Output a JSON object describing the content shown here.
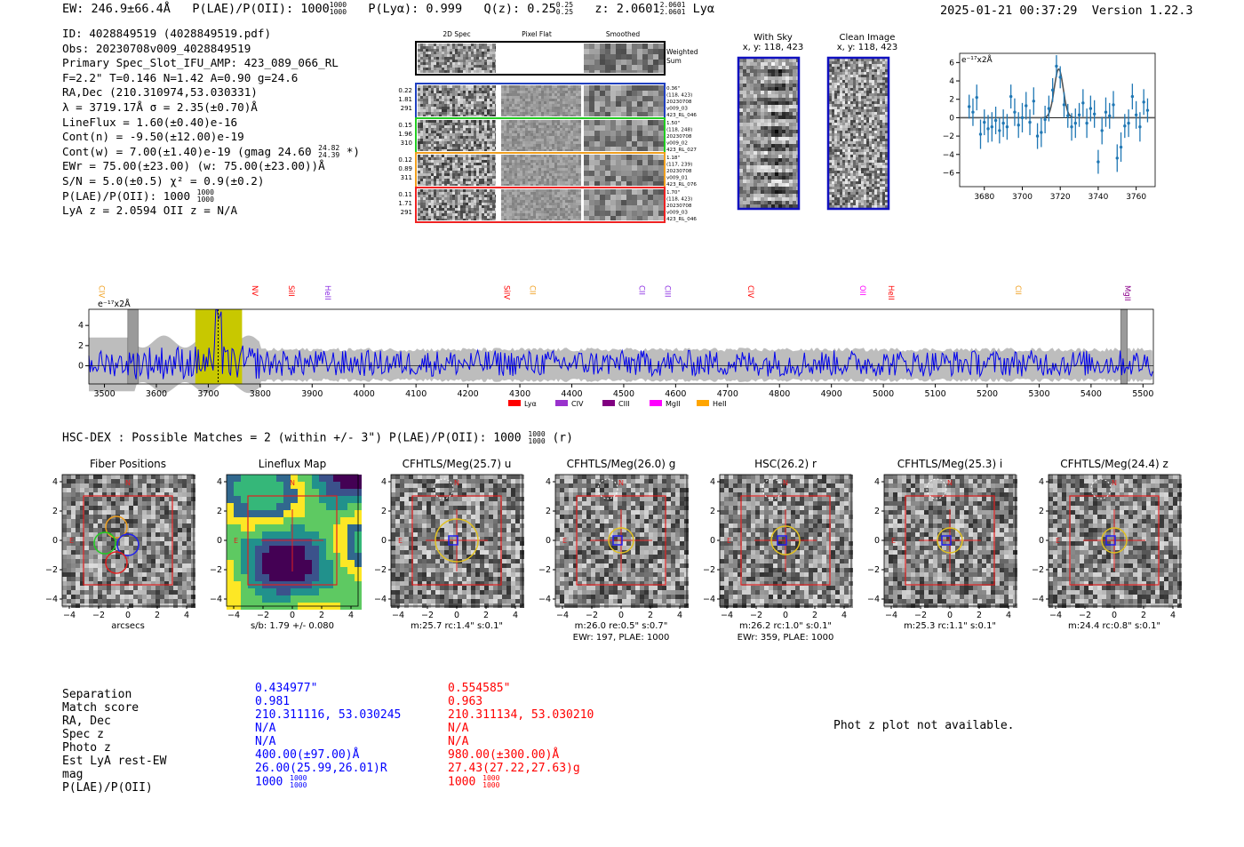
{
  "header": {
    "ew": "EW: 246.9±66.4Å",
    "plae_label": "P(LAE)/P(OII): 1000",
    "plae_hi": "1000",
    "plae_lo": "1000",
    "plya": "P(Lyα): 0.999",
    "qz_label": "Q(z): 0.25",
    "qz_hi": "0.25",
    "qz_lo": "0.25",
    "z_label": "z: 2.0601",
    "z_hi": "2.0601",
    "z_lo": "2.0601",
    "z_line": "Lyα",
    "datetime": "2025-01-21 00:37:29",
    "version": "Version 1.22.3"
  },
  "info": {
    "id": "ID: 4028849519 (4028849519.pdf)",
    "obs": "Obs: 20230708v009_4028849519",
    "primary": "Primary Spec_Slot_IFU_AMP: 423_089_066_RL",
    "f": "F=2.2\"  T=0.146  N=1.42  A=0.90  g=24.6",
    "radec": "RA,Dec (210.310974,53.030331)",
    "lambda": "λ = 3719.17Å   σ = 2.35(±0.70)Å",
    "lineflux": "LineFlux = 1.60(±0.40)e-16",
    "contn": "Cont(n) = -9.50(±12.00)e-19",
    "contw": "Cont(w) = 7.00(±1.40)e-19 (gmag 24.60",
    "contw_hi": "24.82",
    "contw_lo": "24.39",
    "contw_end": "*)",
    "ewr": "EWr = 75.00(±23.00) (w: 75.00(±23.00))Å",
    "sn": "S/N = 5.0(±0.5)  χ² = 0.9(±0.2)",
    "plae": "P(LAE)/P(OII): 1000",
    "plae_hi": "1000",
    "plae_lo": "1000",
    "lyaz": "LyA z = 2.0594  OII z = N/A"
  },
  "cutouts": {
    "col_headers": [
      "2D Spec",
      "Pixel Flat",
      "Smoothed"
    ],
    "weighted_sum": "Weighted\nSum",
    "rows": [
      {
        "left": [
          "0.22",
          "1.81",
          "291"
        ],
        "right": [
          "0.36\"",
          "(118, 423)",
          "20230708",
          "v009_03",
          "423_RL_046"
        ],
        "color": "#1f3fbf"
      },
      {
        "left": [
          "0.15",
          "1.96",
          "310"
        ],
        "right": [
          "1.50\"",
          "(118, 248)",
          "20230708",
          "v009_02",
          "423_RL_027"
        ],
        "color": "#22cc22"
      },
      {
        "left": [
          "0.12",
          "0.89",
          "311"
        ],
        "right": [
          "1.18\"",
          "(117, 239)",
          "20230708",
          "v009_01",
          "423_RL_076"
        ],
        "color": "#f0a020"
      },
      {
        "left": [
          "0.11",
          "1.71",
          "291"
        ],
        "right": [
          "1.70\"",
          "(118, 423)",
          "20230708",
          "v009_03",
          "423_RL_046"
        ],
        "color": "#ee2222"
      }
    ]
  },
  "sky": {
    "with_sky_title": "With Sky",
    "with_sky_xy": "x, y: 118, 423",
    "clean_title": "Clean Image",
    "clean_xy": "x, y: 118, 423"
  },
  "chart_data": [
    {
      "type": "scatter",
      "unit_label": "e⁻¹⁷x2Å",
      "xlim": [
        3667,
        3770
      ],
      "ylim": [
        -7.5,
        7
      ],
      "xticks": [
        3680,
        3700,
        3720,
        3740,
        3760
      ],
      "yticks": [
        6,
        4,
        2,
        0,
        -2,
        -4,
        -6
      ],
      "x": [
        3672,
        3674,
        3676,
        3678,
        3680,
        3682,
        3684,
        3686,
        3688,
        3690,
        3692,
        3694,
        3696,
        3698,
        3700,
        3702,
        3704,
        3706,
        3708,
        3710,
        3712,
        3714,
        3716,
        3718,
        3720,
        3722,
        3724,
        3726,
        3728,
        3730,
        3732,
        3734,
        3736,
        3738,
        3740,
        3742,
        3744,
        3746,
        3748,
        3750,
        3752,
        3754,
        3756,
        3758,
        3760,
        3762,
        3764,
        3766
      ],
      "y": [
        1.2,
        0.6,
        2.2,
        -1.8,
        -0.5,
        -1.2,
        -1.0,
        -0.3,
        -1.4,
        -0.6,
        -1.0,
        2.3,
        0.6,
        -0.8,
        0.0,
        1.3,
        -0.5,
        1.8,
        -2.0,
        -1.6,
        -0.2,
        1.0,
        3.0,
        5.6,
        4.4,
        1.4,
        0.2,
        -1.0,
        -0.6,
        0.3,
        1.6,
        -0.6,
        1.0,
        0.4,
        -4.8,
        -1.4,
        0.6,
        0.2,
        1.4,
        -4.4,
        -3.2,
        -0.9,
        -0.6,
        2.3,
        0.3,
        -1.0,
        1.7,
        0.8
      ],
      "err": [
        1.3,
        1.5,
        1.4,
        1.6,
        1.4,
        1.5,
        1.6,
        1.5,
        1.4,
        1.5,
        1.4,
        1.3,
        1.5,
        1.4,
        1.6,
        1.5,
        1.4,
        1.5,
        1.4,
        1.6,
        1.5,
        1.4,
        1.3,
        1.2,
        1.2,
        1.4,
        1.3,
        1.5,
        1.6,
        1.3,
        1.5,
        1.6,
        1.4,
        1.5,
        1.3,
        1.5,
        1.6,
        1.4,
        1.5,
        1.5,
        1.6,
        1.3,
        1.5,
        1.4,
        1.5,
        1.6,
        1.4,
        1.3
      ],
      "model": {
        "center": 3719.2,
        "sigma": 2.35,
        "amp": 5.3
      }
    },
    {
      "type": "line",
      "unit_label": "e⁻¹⁷x2Å",
      "xlim": [
        3470,
        5520
      ],
      "ylim": [
        -1.8,
        5.6
      ],
      "xticks": [
        3500,
        3600,
        3700,
        3800,
        3900,
        4000,
        4100,
        4200,
        4300,
        4400,
        4500,
        4600,
        4700,
        4800,
        4900,
        5000,
        5100,
        5200,
        5300,
        5400,
        5500
      ],
      "yticks": [
        4,
        2,
        0
      ],
      "highlight_range": [
        3675,
        3765
      ],
      "emission_line": 3719,
      "grey_bands": [
        [
          3545,
          3565
        ],
        [
          5457,
          5470
        ]
      ],
      "line_markers": [
        {
          "label": "CIV",
          "x": 3490,
          "color": "#f0a020"
        },
        {
          "label": "NV",
          "x": 3785,
          "color": "#ff0000"
        },
        {
          "label": "SiII",
          "x": 3855,
          "color": "#ff0000"
        },
        {
          "label": "HeII",
          "x": 3925,
          "color": "#8a2be2"
        },
        {
          "label": "SiIV",
          "x": 4270,
          "color": "#ff0000"
        },
        {
          "label": "CII",
          "x": 4320,
          "color": "#f0a020"
        },
        {
          "label": "CII",
          "x": 4530,
          "color": "#8a2be2"
        },
        {
          "label": "CIII",
          "x": 4580,
          "color": "#8a2be2"
        },
        {
          "label": "CIV",
          "x": 4740,
          "color": "#ff0000"
        },
        {
          "label": "OII",
          "x": 4955,
          "color": "#ff00ff"
        },
        {
          "label": "HeII",
          "x": 5010,
          "color": "#ff0000"
        },
        {
          "label": "CII",
          "x": 5255,
          "color": "#f0a020"
        },
        {
          "label": "MgII",
          "x": 5465,
          "color": "#8b008b"
        }
      ],
      "legend": [
        {
          "label": "Lyα",
          "color": "#ff0000"
        },
        {
          "label": "CIV",
          "color": "#9932cc"
        },
        {
          "label": "CIII",
          "color": "#800080"
        },
        {
          "label": "MgII",
          "color": "#ff00ff"
        },
        {
          "label": "HeII",
          "color": "#ffa500"
        }
      ]
    }
  ],
  "match": {
    "title": "HSC-DEX : Possible Matches = 2 (within +/- 3\")  P(LAE)/P(OII): 1000",
    "title_hi": "1000",
    "title_lo": "1000",
    "title_end": "(r)",
    "panels": [
      {
        "title": "Fiber Positions",
        "cap1": "arcsecs",
        "cap2": ""
      },
      {
        "title": "Lineflux Map",
        "cap1": "s/b: 1.79 +/- 0.080",
        "cap2": ""
      },
      {
        "title": "CFHTLS/Meg(25.7) u",
        "cap1": "m:25.7 rc:1.4\"  s:0.1\"",
        "cap2": ""
      },
      {
        "title": "CFHTLS/Meg(26.0) g",
        "cap1": "m:26.0  re:0.5\"  s:0.7\"",
        "cap2": "EWr: 197, PLAE: 1000"
      },
      {
        "title": "HSC(26.2) r",
        "cap1": "m:26.2 rc:1.0\"  s:0.1\"",
        "cap2": "EWr: 359, PLAE: 1000"
      },
      {
        "title": "CFHTLS/Meg(25.3) i",
        "cap1": "m:25.3 rc:1.1\"  s:0.1\"",
        "cap2": ""
      },
      {
        "title": "CFHTLS/Meg(24.4) z",
        "cap1": "m:24.4 rc:0.8\"  s:0.1\"",
        "cap2": ""
      }
    ],
    "axis_ticks": [
      "4",
      "2",
      "0",
      "−2",
      "−4"
    ],
    "x_ticks": [
      "−4",
      "−2",
      "0",
      "2",
      "4"
    ],
    "compass_n": "N",
    "compass_e": "E"
  },
  "table": {
    "labels": [
      "Separation",
      "Match score",
      "RA, Dec",
      "Spec z",
      "Photo z",
      "Est LyA rest-EW",
      "mag",
      "P(LAE)/P(OII)"
    ],
    "col1": [
      "0.434977\"",
      "0.981",
      "210.311116, 53.030245",
      "N/A",
      "N/A",
      "400.00(±97.00)Å",
      "26.00(25.99,26.01)R",
      "1000"
    ],
    "col1_plae_hi": "1000",
    "col1_plae_lo": "1000",
    "col2": [
      "0.554585\"",
      "0.963",
      "210.311134, 53.030210",
      "N/A",
      "N/A",
      "980.00(±300.00)Å",
      "27.43(27.22,27.63)g",
      "1000"
    ],
    "col2_plae_hi": "1000",
    "col2_plae_lo": "1000",
    "photz_note": "Phot z plot not available."
  }
}
